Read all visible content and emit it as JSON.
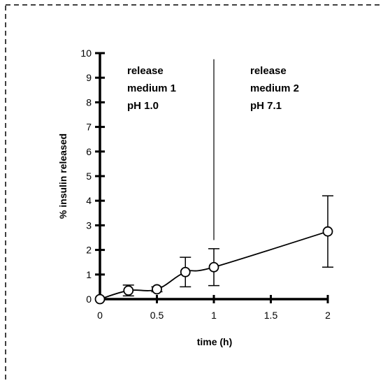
{
  "chart_data": {
    "type": "line",
    "title": "",
    "xlabel": "time (h)",
    "ylabel": "% insulin released",
    "xlim": [
      0,
      2
    ],
    "ylim": [
      0,
      10
    ],
    "x_ticks": [
      "0",
      "0.5",
      "1",
      "1.5",
      "2"
    ],
    "y_ticks": [
      "0",
      "1",
      "2",
      "3",
      "4",
      "5",
      "6",
      "7",
      "8",
      "9",
      "10"
    ],
    "grid": false,
    "legend": "none",
    "series": [
      {
        "x": [
          0,
          0.25,
          0.5,
          0.75,
          1,
          2
        ],
        "y": [
          0,
          0.35,
          0.4,
          1.1,
          1.3,
          2.75
        ],
        "error": [
          0,
          0.22,
          0.1,
          0.6,
          0.75,
          1.45
        ],
        "marker": "open-circle",
        "color": "#000000"
      }
    ],
    "divider_x": 1,
    "annotations": [
      {
        "lines": [
          "release",
          "medium 1",
          "pH 1.0"
        ]
      },
      {
        "lines": [
          "release",
          "medium 2",
          "pH 7.1"
        ]
      }
    ]
  }
}
